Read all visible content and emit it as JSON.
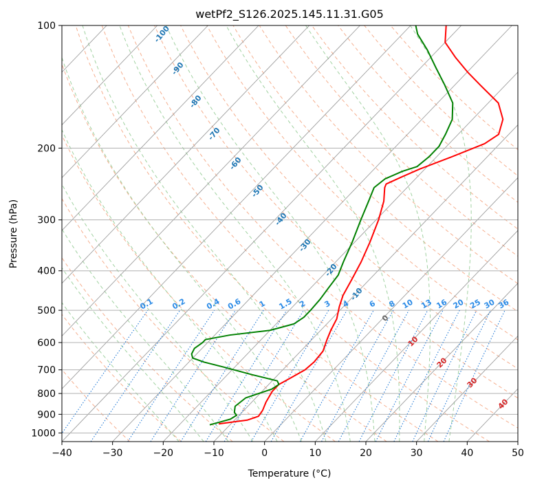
{
  "chart_data": {
    "type": "line",
    "title": "wetPf2_S126.2025.145.11.31.G05",
    "xlabel": "Temperature (°C)",
    "ylabel": "Pressure (hPa)",
    "xlim": [
      -40,
      50
    ],
    "ylim_pressure": [
      1050,
      100
    ],
    "y_scale": "log",
    "x_ticks": [
      -40,
      -30,
      -20,
      -10,
      0,
      10,
      20,
      30,
      40,
      50
    ],
    "y_ticks": [
      100,
      200,
      300,
      400,
      500,
      600,
      700,
      800,
      900,
      1000
    ],
    "grid": true,
    "skew": 35,
    "series": [
      {
        "id": "temperature",
        "color": "#ff0000",
        "points": [
          [
            -12.4,
            950
          ],
          [
            -10.0,
            940
          ],
          [
            -7.5,
            930
          ],
          [
            -6.0,
            910
          ],
          [
            -6.3,
            880
          ],
          [
            -7.2,
            840
          ],
          [
            -8.0,
            790
          ],
          [
            -8.0,
            760
          ],
          [
            -7.0,
            735
          ],
          [
            -5.6,
            700
          ],
          [
            -5.3,
            670
          ],
          [
            -5.6,
            630
          ],
          [
            -7.0,
            590
          ],
          [
            -8.0,
            560
          ],
          [
            -9.0,
            525
          ],
          [
            -10.8,
            490
          ],
          [
            -12.2,
            460
          ],
          [
            -13.5,
            420
          ],
          [
            -15.0,
            380
          ],
          [
            -17.0,
            340
          ],
          [
            -19.5,
            300
          ],
          [
            -22.0,
            270
          ],
          [
            -24.4,
            250
          ],
          [
            -24.8,
            245
          ],
          [
            -23.0,
            235
          ],
          [
            -21.0,
            225
          ],
          [
            -17.0,
            210
          ],
          [
            -13.0,
            195
          ],
          [
            -12.0,
            185
          ],
          [
            -14.0,
            170
          ],
          [
            -18.0,
            155
          ],
          [
            -25.0,
            140
          ],
          [
            -30.0,
            130
          ],
          [
            -35.0,
            120
          ],
          [
            -40.0,
            110
          ],
          [
            -43.0,
            100
          ]
        ]
      },
      {
        "id": "dewpoint",
        "color": "#008000",
        "points": [
          [
            -14.0,
            955
          ],
          [
            -12.5,
            940
          ],
          [
            -11.0,
            925
          ],
          [
            -10.5,
            905
          ],
          [
            -11.5,
            890
          ],
          [
            -12.5,
            860
          ],
          [
            -12.0,
            820
          ],
          [
            -8.5,
            780
          ],
          [
            -8.0,
            760
          ],
          [
            -9.0,
            745
          ],
          [
            -15.0,
            720
          ],
          [
            -22.0,
            690
          ],
          [
            -27.0,
            670
          ],
          [
            -30.0,
            655
          ],
          [
            -31.0,
            640
          ],
          [
            -31.5,
            620
          ],
          [
            -31.0,
            600
          ],
          [
            -31.0,
            590
          ],
          [
            -27.0,
            575
          ],
          [
            -20.0,
            560
          ],
          [
            -16.5,
            540
          ],
          [
            -15.8,
            520
          ],
          [
            -15.8,
            500
          ],
          [
            -16.0,
            470
          ],
          [
            -16.5,
            440
          ],
          [
            -17.0,
            410
          ],
          [
            -18.5,
            380
          ],
          [
            -20.5,
            340
          ],
          [
            -23.0,
            300
          ],
          [
            -25.0,
            270
          ],
          [
            -26.5,
            250
          ],
          [
            -26.0,
            238
          ],
          [
            -24.0,
            228
          ],
          [
            -22.0,
            222
          ],
          [
            -21.5,
            210
          ],
          [
            -21.5,
            198
          ],
          [
            -22.5,
            185
          ],
          [
            -24.0,
            170
          ],
          [
            -27.0,
            155
          ],
          [
            -32.0,
            140
          ],
          [
            -37.0,
            127
          ],
          [
            -42.0,
            115
          ],
          [
            -47.0,
            105
          ],
          [
            -49.0,
            100
          ]
        ]
      }
    ],
    "dry_adiabats_c": [
      -30,
      -20,
      -10,
      0,
      10,
      20,
      30,
      40,
      50,
      60,
      70,
      80,
      90,
      100,
      110,
      120,
      130,
      140,
      150
    ],
    "moist_adiabats_c": [
      -20,
      -15,
      -10,
      -5,
      0,
      5,
      10,
      15,
      20,
      25,
      30,
      35
    ],
    "mixing_ratios": [
      "0.1",
      "0.2",
      "0.4",
      "0.6",
      "1",
      "1.5",
      "2",
      "3",
      "4",
      "6",
      "8",
      "10",
      "13",
      "16",
      "20",
      "25",
      "30",
      "36"
    ],
    "mixing_ratio_values": [
      0.1,
      0.2,
      0.4,
      0.6,
      1,
      1.5,
      2,
      3,
      4,
      6,
      8,
      10,
      13,
      16,
      20,
      25,
      30,
      36
    ],
    "isotherm_labels_blue": [
      "-100",
      "-90",
      "-80",
      "-70",
      "-60",
      "-50",
      "-40",
      "-30",
      "-20",
      "-10"
    ],
    "isotherm_labels_blue_values": [
      -100,
      -90,
      -80,
      -70,
      -60,
      -50,
      -40,
      -30,
      -20,
      -10
    ],
    "isotherm_labels_red": [
      "10",
      "20",
      "30",
      "40"
    ],
    "isotherm_labels_red_values": [
      10,
      20,
      30,
      40
    ],
    "isotherm_label_zero": "0",
    "colors": {
      "temperature": "#ff0000",
      "dewpoint": "#008000",
      "dry_adiabat": "#f4a582",
      "moist_adiabat": "#8fc98f",
      "mixing_ratio": "#1f77d4",
      "isotherm": "#555555",
      "label_blue": "#1f77b4",
      "label_red": "#d62728",
      "label_mix": "#2a8ae6"
    }
  }
}
